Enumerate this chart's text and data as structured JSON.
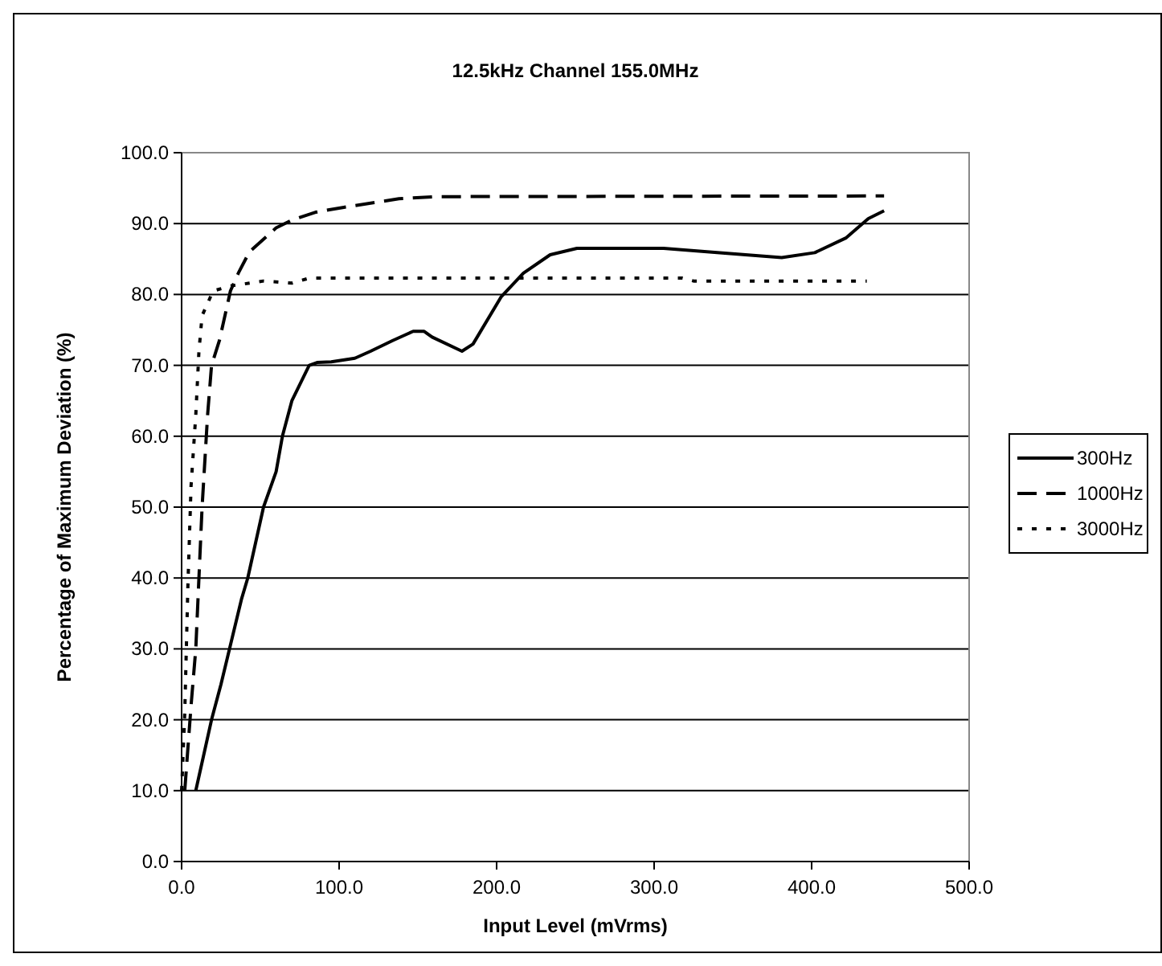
{
  "chart_data": {
    "type": "line",
    "title": "12.5kHz Channel  155.0MHz",
    "xlabel": "Input Level (mVrms)",
    "ylabel": "Percentage of Maximum Deviation (%)",
    "xlim": [
      0,
      500
    ],
    "xticks": [
      {
        "value": 0,
        "label": "0.0"
      },
      {
        "value": 100,
        "label": "100.0"
      },
      {
        "value": 200,
        "label": "200.0"
      },
      {
        "value": 300,
        "label": "300.0"
      },
      {
        "value": 400,
        "label": "400.0"
      },
      {
        "value": 500,
        "label": "500.0"
      }
    ],
    "ylim": [
      0,
      100
    ],
    "yticks": [
      {
        "value": 0,
        "label": "0.0"
      },
      {
        "value": 10,
        "label": "10.0"
      },
      {
        "value": 20,
        "label": "20.0"
      },
      {
        "value": 30,
        "label": "30.0"
      },
      {
        "value": 40,
        "label": "40.0"
      },
      {
        "value": 50,
        "label": "50.0"
      },
      {
        "value": 60,
        "label": "60.0"
      },
      {
        "value": 70,
        "label": "70.0"
      },
      {
        "value": 80,
        "label": "80.0"
      },
      {
        "value": 90,
        "label": "90.0"
      },
      {
        "value": 100,
        "label": "100.0"
      }
    ],
    "grid": "y",
    "legend": "right",
    "marker": "none",
    "series": [
      {
        "name": "300Hz",
        "color": "#000000",
        "line_style": "solid",
        "x": [
          9,
          19,
          25,
          38,
          42,
          52,
          60,
          64,
          70,
          81,
          86,
          95,
          110,
          120,
          134,
          147,
          154,
          159,
          178,
          185,
          203,
          217,
          234,
          251,
          306,
          340,
          381,
          402,
          422,
          436,
          446
        ],
        "values": [
          10,
          20,
          25,
          37,
          40,
          50,
          55,
          60,
          65,
          70,
          70.4,
          70.5,
          71,
          72,
          73.5,
          74.8,
          74.8,
          74,
          72,
          73,
          79.7,
          83,
          85.6,
          86.5,
          86.5,
          85.9,
          85.2,
          85.9,
          88,
          90.7,
          91.8
        ]
      },
      {
        "name": "1000Hz",
        "color": "#000000",
        "line_style": "dashed",
        "x": [
          2,
          6,
          9,
          13,
          16.5,
          19,
          24,
          31,
          36,
          43,
          60,
          70,
          85,
          103,
          138,
          161,
          446
        ],
        "values": [
          10,
          22,
          30,
          50,
          63,
          70,
          73.5,
          80.5,
          83,
          86,
          89.4,
          90.5,
          91.6,
          92.3,
          93.5,
          93.8,
          93.9
        ]
      },
      {
        "name": "3000Hz",
        "color": "#000000",
        "line_style": "dotted",
        "x": [
          0,
          2,
          4,
          6,
          9,
          11,
          13,
          20,
          31,
          52,
          70,
          81,
          103,
          318,
          325,
          435
        ],
        "values": [
          10,
          21,
          39,
          53,
          63,
          72,
          77,
          80.5,
          81.2,
          81.9,
          81.6,
          82.3,
          82.3,
          82.3,
          81.9,
          81.9
        ]
      }
    ]
  }
}
